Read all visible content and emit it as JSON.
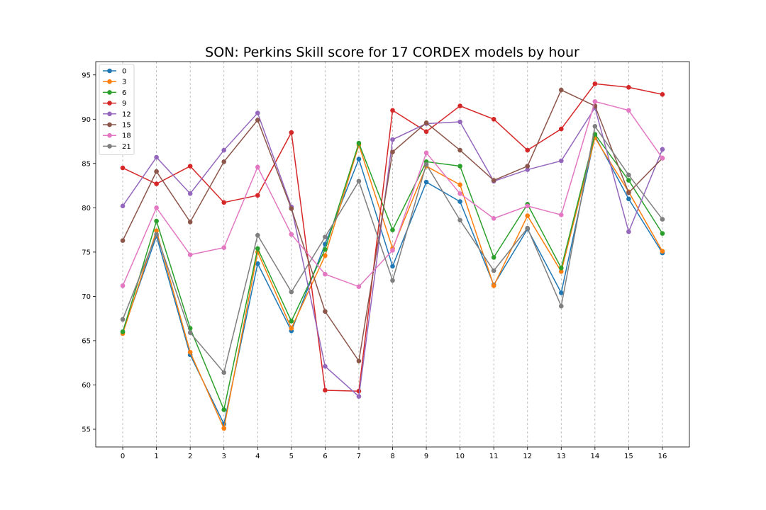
{
  "chart_data": {
    "type": "line",
    "title": "SON: Perkins Skill score for 17 CORDEX models by hour",
    "xlabel": "",
    "ylabel": "",
    "x": [
      0,
      1,
      2,
      3,
      4,
      5,
      6,
      7,
      8,
      9,
      10,
      11,
      12,
      13,
      14,
      15,
      16
    ],
    "xticks": [
      "0",
      "1",
      "2",
      "3",
      "4",
      "5",
      "6",
      "7",
      "8",
      "9",
      "10",
      "11",
      "12",
      "13",
      "14",
      "15",
      "16"
    ],
    "yticks": [
      "55",
      "60",
      "65",
      "70",
      "75",
      "80",
      "85",
      "90",
      "95"
    ],
    "ylim": [
      53,
      96.5
    ],
    "xlim": [
      -0.8,
      16.8
    ],
    "grid": "vertical dashed",
    "legend_position": "top-left",
    "series": [
      {
        "name": "0",
        "color": "#1f77b4",
        "values": [
          66.0,
          76.8,
          63.4,
          55.6,
          73.7,
          66.1,
          75.9,
          85.5,
          73.4,
          82.9,
          80.7,
          71.3,
          77.6,
          70.4,
          88.1,
          81.0,
          74.9
        ]
      },
      {
        "name": "3",
        "color": "#ff7f0e",
        "values": [
          65.8,
          77.4,
          63.7,
          55.1,
          75.0,
          66.4,
          74.6,
          87.1,
          75.4,
          84.7,
          82.6,
          71.2,
          79.1,
          72.8,
          87.9,
          81.8,
          75.1
        ]
      },
      {
        "name": "6",
        "color": "#2ca02c",
        "values": [
          66.0,
          78.5,
          66.4,
          57.2,
          75.4,
          67.2,
          75.3,
          87.3,
          77.5,
          85.2,
          84.7,
          74.4,
          80.4,
          73.2,
          88.3,
          83.1,
          77.1
        ]
      },
      {
        "name": "9",
        "color": "#d62728",
        "values": [
          84.5,
          82.7,
          84.7,
          80.6,
          81.4,
          88.5,
          59.4,
          59.3,
          91.0,
          88.6,
          91.5,
          90.0,
          86.5,
          88.9,
          94.0,
          93.6,
          92.8
        ]
      },
      {
        "name": "12",
        "color": "#9467bd",
        "values": [
          80.2,
          85.7,
          81.6,
          86.5,
          90.7,
          80.1,
          62.1,
          58.7,
          87.7,
          89.5,
          89.7,
          83.0,
          84.3,
          85.3,
          91.3,
          77.3,
          86.6
        ]
      },
      {
        "name": "15",
        "color": "#8c564b",
        "values": [
          76.3,
          84.1,
          78.4,
          85.2,
          89.9,
          79.9,
          68.3,
          62.7,
          86.3,
          89.6,
          86.5,
          83.1,
          84.7,
          93.3,
          91.5,
          81.7,
          85.6
        ]
      },
      {
        "name": "18",
        "color": "#e377c2",
        "values": [
          71.2,
          80.0,
          74.7,
          75.5,
          84.6,
          77.0,
          72.5,
          71.1,
          75.2,
          86.2,
          81.6,
          78.8,
          80.2,
          79.2,
          92.0,
          91.0,
          85.6
        ]
      },
      {
        "name": "21",
        "color": "#7f7f7f",
        "values": [
          67.4,
          77.0,
          65.9,
          61.4,
          76.9,
          70.5,
          76.7,
          83.0,
          71.8,
          84.9,
          78.6,
          72.9,
          77.7,
          68.9,
          89.2,
          83.7,
          78.7
        ]
      }
    ]
  }
}
